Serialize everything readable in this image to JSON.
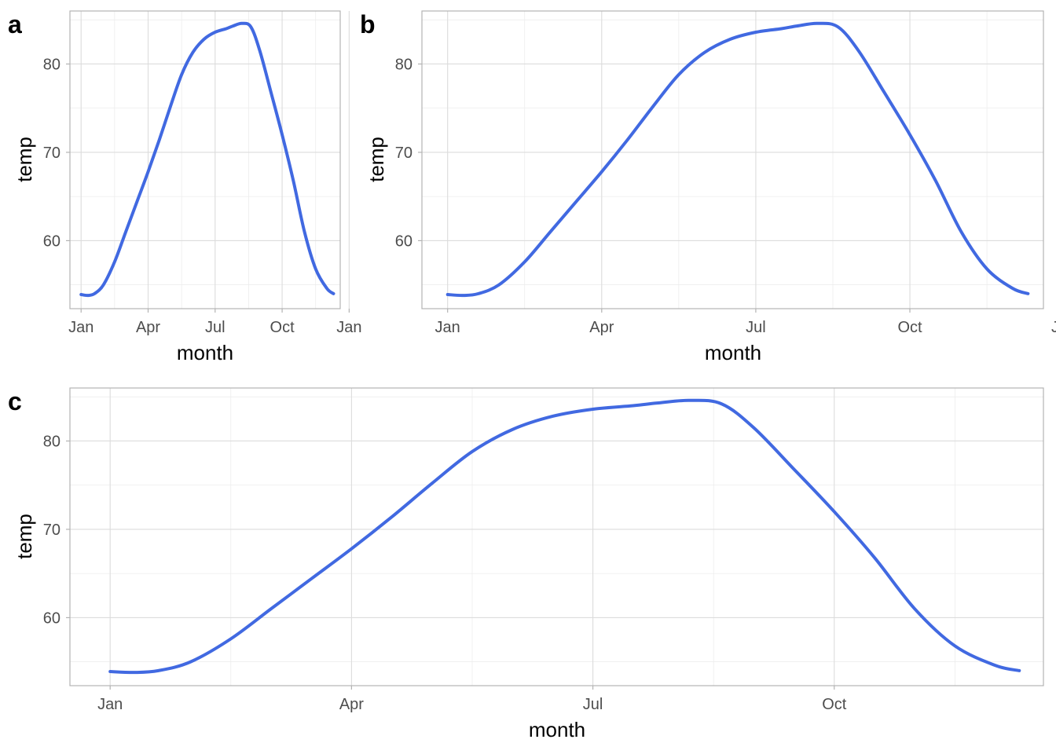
{
  "figure": {
    "colors": {
      "line": "#4169e1",
      "background": "#ffffff",
      "grid": "#dcdcdc",
      "frame": "#b3b3b3"
    }
  },
  "chart_data": [
    {
      "tag": "a",
      "type": "line",
      "title": "",
      "xlabel": "month",
      "ylabel": "temp",
      "x_ticks": [
        "Jan",
        "Apr",
        "Jul",
        "Oct",
        "Jan"
      ],
      "y_ticks": [
        60,
        70,
        80
      ],
      "xlim": [
        0.5,
        12.6
      ],
      "ylim": [
        52.3,
        86
      ],
      "grid": true,
      "legend": "none",
      "series": [
        {
          "x": [
            1,
            1.3,
            1.6,
            2,
            2.5,
            3,
            3.5,
            4,
            4.5,
            5,
            5.5,
            6,
            6.5,
            7,
            7.5,
            7.8,
            8.2,
            8.6,
            9,
            9.5,
            10,
            10.5,
            11,
            11.5,
            12,
            12.3
          ],
          "values": [
            53.9,
            53.8,
            54.0,
            55.0,
            57.6,
            61.0,
            64.4,
            67.8,
            71.4,
            75.2,
            78.8,
            81.3,
            82.8,
            83.6,
            84.0,
            84.3,
            84.6,
            84.2,
            81.5,
            76.8,
            72.0,
            66.8,
            61.0,
            56.8,
            54.6,
            54.0
          ]
        }
      ]
    },
    {
      "tag": "b",
      "type": "line",
      "title": "",
      "xlabel": "month",
      "ylabel": "temp",
      "x_ticks": [
        "Jan",
        "Apr",
        "Jul",
        "Oct",
        "Jan"
      ],
      "y_ticks": [
        60,
        70,
        80
      ],
      "xlim": [
        0.5,
        12.6
      ],
      "ylim": [
        52.3,
        86
      ],
      "grid": true,
      "legend": "none",
      "series": [
        {
          "x": [
            1,
            1.3,
            1.6,
            2,
            2.5,
            3,
            3.5,
            4,
            4.5,
            5,
            5.5,
            6,
            6.5,
            7,
            7.5,
            7.8,
            8.2,
            8.6,
            9,
            9.5,
            10,
            10.5,
            11,
            11.5,
            12,
            12.3
          ],
          "values": [
            53.9,
            53.8,
            54.0,
            55.0,
            57.6,
            61.0,
            64.4,
            67.8,
            71.4,
            75.2,
            78.8,
            81.3,
            82.8,
            83.6,
            84.0,
            84.3,
            84.6,
            84.2,
            81.5,
            76.8,
            72.0,
            66.8,
            61.0,
            56.8,
            54.6,
            54.0
          ]
        }
      ]
    },
    {
      "tag": "c",
      "type": "line",
      "title": "",
      "xlabel": "month",
      "ylabel": "temp",
      "x_ticks": [
        "Jan",
        "Apr",
        "Jul",
        "Oct",
        "Jan"
      ],
      "y_ticks": [
        60,
        70,
        80
      ],
      "xlim": [
        0.5,
        12.6
      ],
      "ylim": [
        52.3,
        86
      ],
      "grid": true,
      "legend": "none",
      "series": [
        {
          "x": [
            1,
            1.3,
            1.6,
            2,
            2.5,
            3,
            3.5,
            4,
            4.5,
            5,
            5.5,
            6,
            6.5,
            7,
            7.5,
            7.8,
            8.2,
            8.6,
            9,
            9.5,
            10,
            10.5,
            11,
            11.5,
            12,
            12.3
          ],
          "values": [
            53.9,
            53.8,
            54.0,
            55.0,
            57.6,
            61.0,
            64.4,
            67.8,
            71.4,
            75.2,
            78.8,
            81.3,
            82.8,
            83.6,
            84.0,
            84.3,
            84.6,
            84.2,
            81.5,
            76.8,
            72.0,
            66.8,
            61.0,
            56.8,
            54.6,
            54.0
          ]
        }
      ]
    }
  ]
}
